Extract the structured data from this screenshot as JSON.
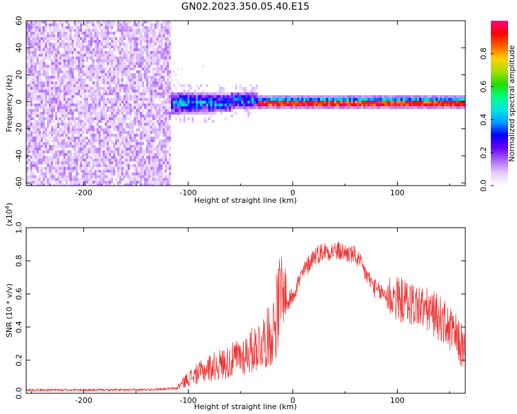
{
  "figure": {
    "title": "GN02.2023.350.05.40.E15"
  },
  "chart_data": [
    {
      "type": "heatmap",
      "title": "GN02.2023.350.05.40.E15",
      "xlabel": "Height of straight line (km)",
      "ylabel": "Frequency (Hz)",
      "xlim": [
        -255,
        165
      ],
      "ylim": [
        -62,
        60
      ],
      "xticks": [
        -200,
        -100,
        0,
        100
      ],
      "yticks": [
        -60,
        -40,
        -20,
        0,
        20,
        40,
        60
      ],
      "colorbar": {
        "label": "Normalized spectral amplitude",
        "range": [
          0,
          1
        ],
        "ticks": [
          0.0,
          0.2,
          0.4,
          0.6,
          0.8
        ],
        "colormap": [
          "#ffffff",
          "#e6ccff",
          "#aa66ff",
          "#6600ff",
          "#0000ff",
          "#00a0ff",
          "#00e5e5",
          "#00ff80",
          "#22dd00",
          "#aadd00",
          "#ffd000",
          "#ff6000",
          "#ff0000",
          "#ff0080"
        ]
      },
      "regions": [
        {
          "name": "noise",
          "x_range": [
            -255,
            -118
          ],
          "freq_range": [
            -62,
            60
          ],
          "amplitude": "0.05-0.15"
        },
        {
          "name": "onset",
          "x_range": [
            -118,
            -35
          ],
          "freq_center": [
            0,
            4
          ],
          "freq_halfwidth": [
            9,
            6
          ],
          "amplitude": "0.1-0.5"
        },
        {
          "name": "tone",
          "x_range": [
            -35,
            165
          ],
          "freq_center": 0,
          "freq_halfwidth": 2,
          "amplitude": "0.7-1.0"
        }
      ]
    },
    {
      "type": "line",
      "xlabel": "Height of straight line (km)",
      "ylabel": "SNR (10 * v/v)",
      "exponent_label": "(x10",
      "exponent_power": "4",
      "exponent_close": ")",
      "xlim": [
        -255,
        165
      ],
      "ylim": [
        0,
        1.0
      ],
      "xticks": [
        -200,
        -100,
        0,
        100
      ],
      "yticks": [
        0.0,
        0.2,
        0.4,
        0.6,
        0.8,
        1.0
      ],
      "color": "#ee3333",
      "series": [
        {
          "name": "SNR",
          "x": [
            -255,
            -200,
            -150,
            -110,
            -100,
            -80,
            -60,
            -40,
            -20,
            -10,
            0,
            10,
            20,
            30,
            40,
            50,
            60,
            70,
            80,
            100,
            120,
            140,
            155,
            165
          ],
          "y": [
            0.02,
            0.02,
            0.02,
            0.03,
            0.07,
            0.12,
            0.15,
            0.2,
            0.28,
            0.48,
            0.6,
            0.73,
            0.83,
            0.86,
            0.86,
            0.85,
            0.83,
            0.72,
            0.62,
            0.57,
            0.53,
            0.46,
            0.35,
            0.25
          ]
        }
      ]
    }
  ]
}
